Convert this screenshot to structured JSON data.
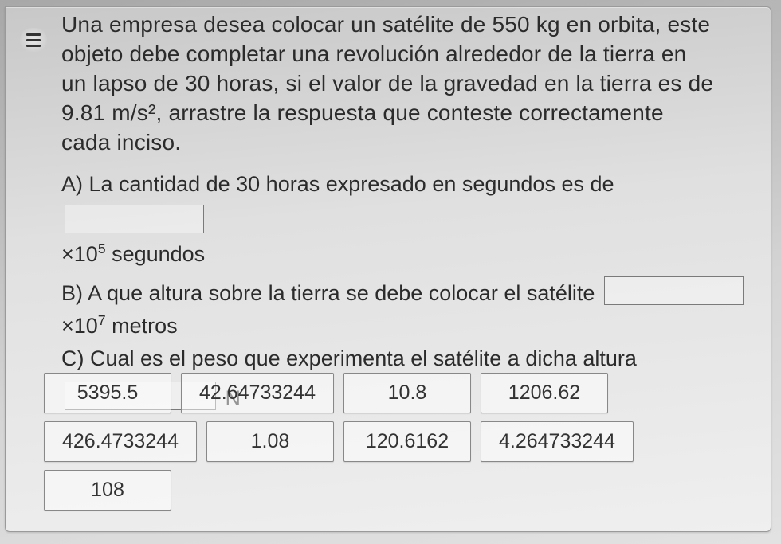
{
  "problem": {
    "text_lines": [
      "Una empresa desea colocar un satélite de 550 kg en orbita, este",
      "objeto debe completar una revolución alrededor de la tierra en",
      "un lapso de 30 horas, si el valor de la gravedad en la tierra es de",
      "9.81 m/s², arrastre la respuesta que conteste correctamente",
      "cada inciso."
    ]
  },
  "questions": {
    "a_prefix": "A) La cantidad de 30 horas expresado en segundos es de",
    "a_unit_prefix": "×10",
    "a_unit_exp": "5",
    "a_unit_suffix": " segundos",
    "b_prefix": "B) A que altura sobre la tierra se debe colocar el satélite",
    "b_unit_prefix": "×10",
    "b_unit_exp": "7",
    "b_unit_suffix": " metros",
    "c_prefix": "C) Cual es el peso que experimenta el satélite a dicha altura",
    "c_unit": "N"
  },
  "options": [
    "5395.5",
    "42.64733244",
    "10.8",
    "1206.62",
    "426.4733244",
    "1.08",
    "120.6162",
    "4.264733244",
    "108"
  ],
  "style": {
    "text_color": "#2b2b2b",
    "border_color": "#888888",
    "chip_bg": "rgba(255,255,255,0.5)",
    "font_size_body": 28,
    "font_size_options": 25
  }
}
